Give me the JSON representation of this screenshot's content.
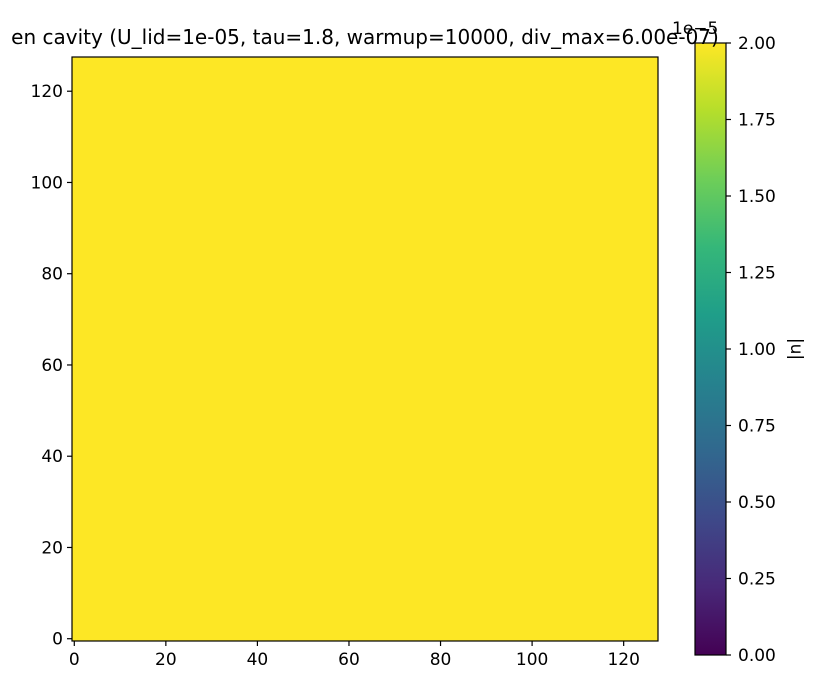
{
  "chart_data": {
    "type": "heatmap",
    "title": "en cavity (U_lid=1e-05, tau=1.8, warmup=10000, div_max=6.00e-07)",
    "x_ticks": [
      0,
      20,
      40,
      60,
      80,
      100,
      120
    ],
    "y_ticks": [
      0,
      20,
      40,
      60,
      80,
      100,
      120
    ],
    "xlim": [
      -0.5,
      127.5
    ],
    "ylim": [
      -0.5,
      127.5
    ],
    "grid": false,
    "field_value": 2e-05,
    "field_color": "#fde725",
    "colorbar": {
      "label": "|u|",
      "offset_text": "1e−5",
      "tick_values": [
        0.0,
        0.25,
        0.5,
        0.75,
        1.0,
        1.25,
        1.5,
        1.75,
        2.0
      ],
      "tick_labels": [
        "0.00",
        "0.25",
        "0.50",
        "0.75",
        "1.00",
        "1.25",
        "1.50",
        "1.75",
        "2.00"
      ],
      "range": [
        0.0,
        2.0
      ],
      "colormap": "viridis",
      "colormap_stops": [
        "#440154",
        "#482878",
        "#3e4989",
        "#31688e",
        "#26828e",
        "#1f9e89",
        "#35b779",
        "#6ece58",
        "#b5de2b",
        "#fde725"
      ]
    }
  }
}
